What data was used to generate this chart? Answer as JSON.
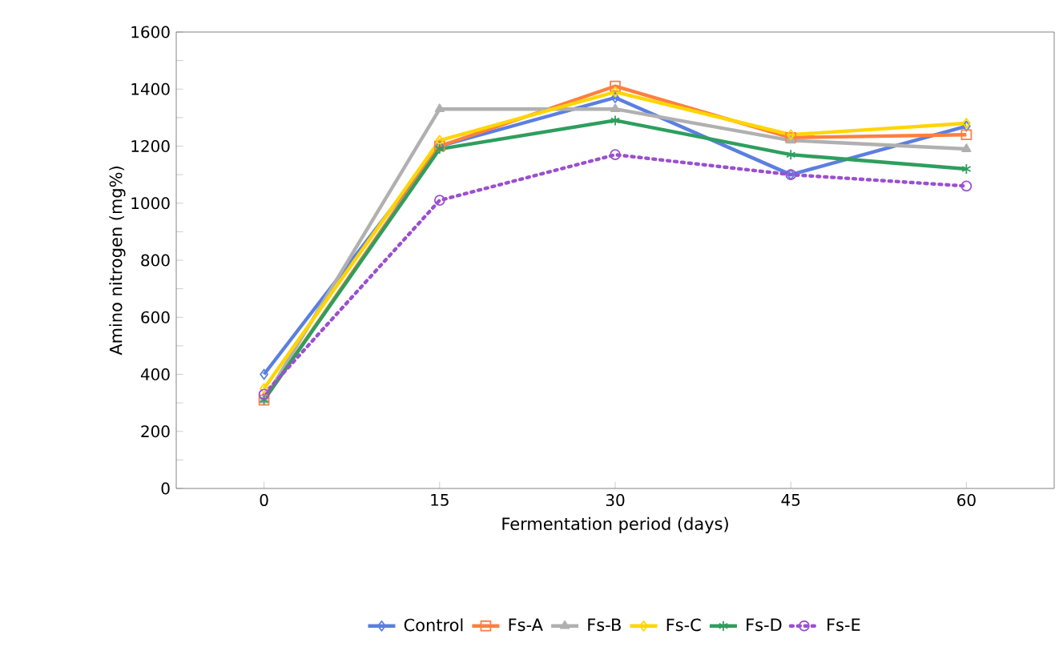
{
  "chart_data": {
    "type": "line",
    "xlabel": "Fermentation period (days)",
    "ylabel": "Amino nitrogen (mg%)",
    "categories": [
      "0",
      "15",
      "30",
      "45",
      "60"
    ],
    "ylim": [
      0,
      1600
    ],
    "yticks": [
      0,
      {
        "value": 100,
        "label": null
      },
      200,
      {
        "value": 300,
        "label": null
      },
      400,
      {
        "value": 500,
        "label": null
      },
      600,
      {
        "value": 700,
        "label": null
      },
      800,
      {
        "value": 900,
        "label": null
      },
      1000,
      {
        "value": 1100,
        "label": null
      },
      1200,
      {
        "value": 1300,
        "label": null
      },
      1400,
      {
        "value": 1500,
        "label": null
      },
      1600
    ],
    "grid": false,
    "legend": "bottom",
    "series": [
      {
        "name": "Control",
        "color": "#5b7fe0",
        "marker": "diamond",
        "line_style": "solid",
        "values": [
          400,
          1200,
          1370,
          1100,
          1270
        ]
      },
      {
        "name": "Fs-A",
        "color": "#ff7f3f",
        "marker": "square",
        "line_style": "solid",
        "values": [
          310,
          1200,
          1410,
          1230,
          1240
        ]
      },
      {
        "name": "Fs-B",
        "color": "#b0b0b0",
        "marker": "triangle",
        "line_style": "solid",
        "values": [
          310,
          1330,
          1330,
          1220,
          1190
        ]
      },
      {
        "name": "Fs-C",
        "color": "#ffd500",
        "marker": "diamond",
        "line_style": "solid",
        "values": [
          350,
          1220,
          1390,
          1240,
          1280
        ]
      },
      {
        "name": "Fs-D",
        "color": "#2e9e5e",
        "marker": "cross",
        "line_style": "solid",
        "values": [
          310,
          1190,
          1290,
          1170,
          1120
        ]
      },
      {
        "name": "Fs-E",
        "color": "#9b4fd0",
        "marker": "circle",
        "line_style": "dotted",
        "values": [
          330,
          1010,
          1170,
          1100,
          1060
        ]
      }
    ]
  }
}
